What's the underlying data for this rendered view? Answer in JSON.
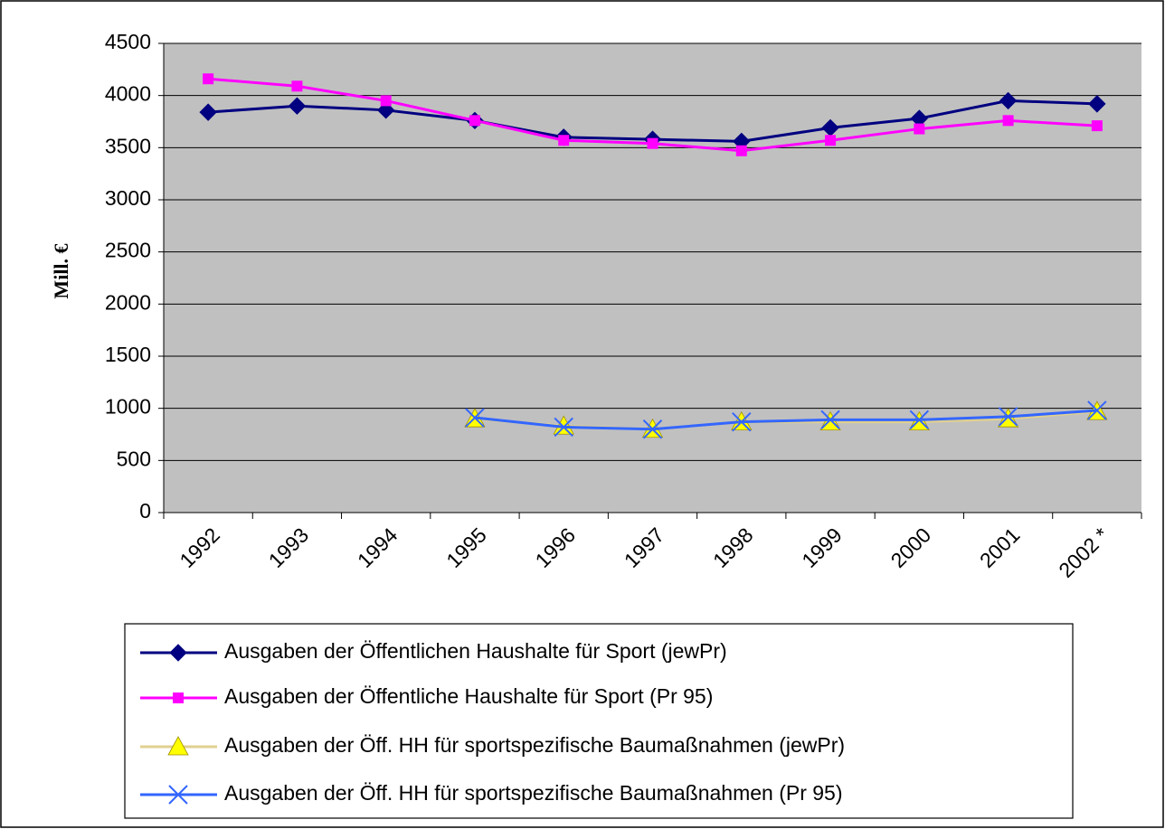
{
  "chart_data": {
    "type": "line",
    "ylabel": "Mill. €",
    "categories": [
      "1992",
      "1993",
      "1994",
      "1995",
      "1996",
      "1997",
      "1998",
      "1999",
      "2000",
      "2001",
      "2002 *"
    ],
    "series": [
      {
        "name": "Ausgaben der Öffentlichen Haushalte für Sport (jewPr)",
        "color": "#000080",
        "marker": "diamond",
        "values": [
          3840,
          3900,
          3860,
          3760,
          3600,
          3580,
          3560,
          3690,
          3780,
          3950,
          3920
        ]
      },
      {
        "name": "Ausgaben der Öffentliche Haushalte für Sport (Pr 95)",
        "color": "#ff00ff",
        "marker": "square",
        "values": [
          4160,
          4090,
          3950,
          3760,
          3570,
          3540,
          3470,
          3570,
          3680,
          3760,
          3710
        ]
      },
      {
        "name": "Ausgaben der Öff. HH für sportspezifische Baumaßnahmen (jewPr)",
        "color": "#ffff00",
        "marker": "triangle",
        "values": [
          null,
          null,
          null,
          900,
          830,
          800,
          870,
          870,
          870,
          900,
          970
        ]
      },
      {
        "name": "Ausgaben der Öff. HH für sportspezifische Baumaßnahmen (Pr 95)",
        "color": "#3366ff",
        "marker": "x",
        "values": [
          null,
          null,
          null,
          910,
          820,
          800,
          870,
          890,
          890,
          920,
          980
        ]
      }
    ],
    "ylim": [
      0,
      4500
    ],
    "yticks": [
      0,
      500,
      1000,
      1500,
      2000,
      2500,
      3000,
      3500,
      4000,
      4500
    ],
    "grid": true
  }
}
